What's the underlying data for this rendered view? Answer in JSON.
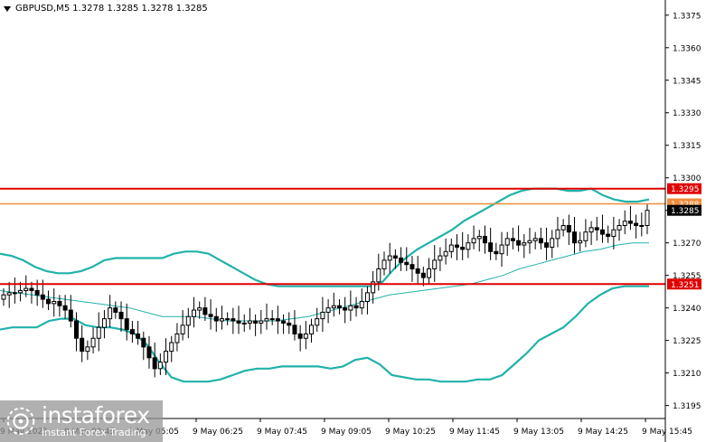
{
  "header": {
    "symbol_tf": "GBPUSD,M5",
    "ohlc": "1.3278 1.3285 1.3278 1.3285"
  },
  "watermark": {
    "brand": "instaforex",
    "tagline": "Instant Forex Trading"
  },
  "chart_data": {
    "type": "candlestick",
    "y_ticks": [
      "1.3375",
      "1.3360",
      "1.3345",
      "1.3330",
      "1.3315",
      "1.3300",
      "1.3285",
      "1.3270",
      "1.3255",
      "1.3240",
      "1.3225",
      "1.3210",
      "1.3195"
    ],
    "x_ticks": [
      "9 May 2025",
      "9 May 03:45",
      "9 May 05:05",
      "9 May 06:25",
      "9 May 07:45",
      "9 May 09:05",
      "9 May 10:25",
      "9 May 11:45",
      "9 May 13:05",
      "9 May 14:25",
      "9 May 15:45"
    ],
    "ylim": [
      1.3189,
      1.3382
    ],
    "levels": [
      {
        "value": 1.3295,
        "label": "1.3295",
        "color": "#e00000"
      },
      {
        "value": 1.3288,
        "label": "1.3288",
        "color": "#f08c3c"
      },
      {
        "value": 1.3285,
        "label": "1.3285",
        "color": "#000000"
      },
      {
        "value": 1.3251,
        "label": "1.3251",
        "color": "#e00000"
      }
    ],
    "closes": [
      1.3246,
      1.3247,
      1.3247,
      1.3248,
      1.3249,
      1.3248,
      1.3246,
      1.3244,
      1.3242,
      1.3243,
      1.3241,
      1.3239,
      1.3234,
      1.3226,
      1.322,
      1.3222,
      1.3226,
      1.3231,
      1.3235,
      1.324,
      1.3238,
      1.3235,
      1.323,
      1.3228,
      1.3226,
      1.3222,
      1.3217,
      1.3212,
      1.3215,
      1.322,
      1.3224,
      1.3228,
      1.3232,
      1.3236,
      1.3239,
      1.324,
      1.3237,
      1.3236,
      1.3234,
      1.3235,
      1.3235,
      1.3234,
      1.3233,
      1.3233,
      1.3234,
      1.3233,
      1.3234,
      1.3235,
      1.3235,
      1.3234,
      1.3233,
      1.3232,
      1.3228,
      1.3226,
      1.3228,
      1.3232,
      1.3235,
      1.3238,
      1.324,
      1.3241,
      1.324,
      1.3239,
      1.3241,
      1.324,
      1.3243,
      1.3247,
      1.3252,
      1.3258,
      1.3262,
      1.3264,
      1.3263,
      1.3261,
      1.326,
      1.3258,
      1.3256,
      1.3254,
      1.3258,
      1.3262,
      1.3264,
      1.3266,
      1.3269,
      1.3268,
      1.3267,
      1.327,
      1.3272,
      1.3273,
      1.327,
      1.3266,
      1.3265,
      1.3269,
      1.3272,
      1.3271,
      1.3269,
      1.327,
      1.3271,
      1.3272,
      1.327,
      1.3268,
      1.3272,
      1.3276,
      1.3278,
      1.3275,
      1.327,
      1.3271,
      1.3275,
      1.3277,
      1.3276,
      1.3274,
      1.3273,
      1.3276,
      1.3278,
      1.328,
      1.3279,
      1.3278,
      1.3278,
      1.3285
    ],
    "upper_band_values": [
      1.3265,
      1.3264,
      1.3262,
      1.3259,
      1.3257,
      1.3256,
      1.3256,
      1.3257,
      1.3259,
      1.3262,
      1.3263,
      1.3263,
      1.3263,
      1.3263,
      1.3263,
      1.3265,
      1.3266,
      1.3266,
      1.3265,
      1.3262,
      1.3259,
      1.3256,
      1.3253,
      1.3251,
      1.325,
      1.325,
      1.325,
      1.325,
      1.325,
      1.325,
      1.325,
      1.325,
      1.325,
      1.3252,
      1.3258,
      1.3263,
      1.3267,
      1.327,
      1.3273,
      1.3276,
      1.328,
      1.3283,
      1.3286,
      1.3289,
      1.3292,
      1.3294,
      1.3295,
      1.3295,
      1.3295,
      1.3294,
      1.3294,
      1.3295,
      1.3292,
      1.329,
      1.3289,
      1.3289,
      1.329
    ],
    "lower_band_values": [
      1.323,
      1.3231,
      1.3231,
      1.3231,
      1.3234,
      1.3235,
      1.3235,
      1.3232,
      1.3231,
      1.3231,
      1.323,
      1.3228,
      1.3223,
      1.3215,
      1.3208,
      1.3206,
      1.3206,
      1.3206,
      1.3207,
      1.3209,
      1.3211,
      1.3212,
      1.3212,
      1.3213,
      1.3213,
      1.3213,
      1.3213,
      1.3212,
      1.3213,
      1.3216,
      1.3217,
      1.3214,
      1.3209,
      1.3208,
      1.3207,
      1.3207,
      1.3206,
      1.3206,
      1.3206,
      1.3207,
      1.3207,
      1.3209,
      1.3214,
      1.3219,
      1.3225,
      1.3228,
      1.3231,
      1.3236,
      1.3242,
      1.3246,
      1.3249,
      1.325,
      1.325,
      1.325
    ],
    "middle_band_values": [
      1.3248,
      1.3247,
      1.3246,
      1.3245,
      1.3244,
      1.3243,
      1.3242,
      1.3241,
      1.324,
      1.3238,
      1.3236,
      1.3236,
      1.3236,
      1.3235,
      1.3234,
      1.3234,
      1.3234,
      1.3234,
      1.3235,
      1.3236,
      1.3238,
      1.324,
      1.3242,
      1.3244,
      1.3246,
      1.3247,
      1.3248,
      1.3249,
      1.325,
      1.3251,
      1.3253,
      1.3255,
      1.3258,
      1.326,
      1.3262,
      1.3264,
      1.3266,
      1.3267,
      1.3269,
      1.327,
      1.327
    ],
    "grid": false
  },
  "colors": {
    "band": "#20b2aa",
    "candle": "#000000",
    "background": "#ffffff"
  }
}
